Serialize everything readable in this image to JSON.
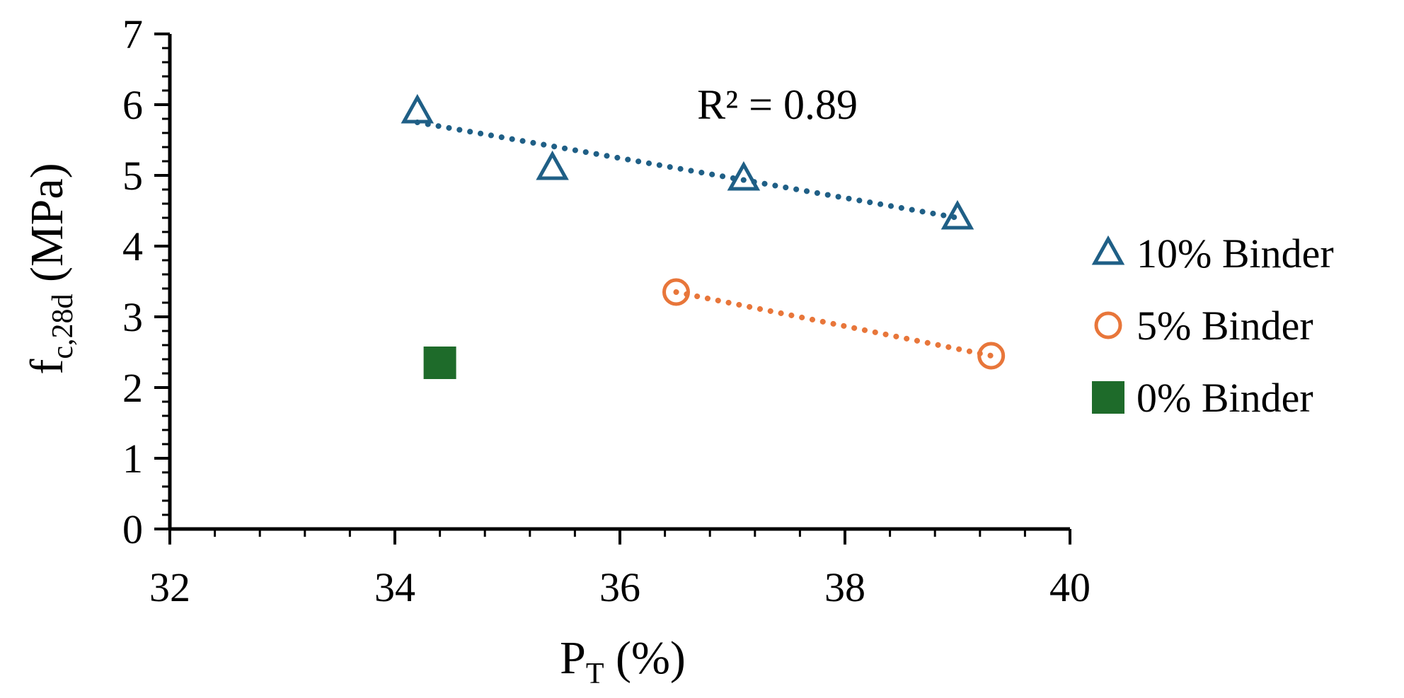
{
  "chart_data": {
    "type": "scatter",
    "title": "",
    "xlabel": {
      "main": "P",
      "sub": "T",
      "suffix": " (%)"
    },
    "ylabel": {
      "main": "f",
      "sub": "c,28d",
      "suffix": " (MPa)"
    },
    "xlim": [
      32,
      40
    ],
    "ylim": [
      0,
      7
    ],
    "x_ticks": [
      "32",
      "34",
      "36",
      "38",
      "40"
    ],
    "y_ticks": [
      "0",
      "1",
      "2",
      "3",
      "4",
      "5",
      "6",
      "7"
    ],
    "grid": false,
    "legend_position": "right",
    "series": [
      {
        "name": "10% Binder",
        "marker": "triangle-open",
        "color": "#1f5f86",
        "points": [
          {
            "x": 34.2,
            "y": 5.9
          },
          {
            "x": 35.4,
            "y": 5.1
          },
          {
            "x": 37.1,
            "y": 4.95
          },
          {
            "x": 39.0,
            "y": 4.4
          }
        ],
        "trendline": {
          "x": [
            34.2,
            39.0
          ],
          "y": [
            5.75,
            4.4
          ],
          "style": "dotted"
        }
      },
      {
        "name": "5% Binder",
        "marker": "circle-open",
        "color": "#e8763a",
        "points": [
          {
            "x": 36.5,
            "y": 3.35
          },
          {
            "x": 39.3,
            "y": 2.45
          }
        ],
        "trendline": {
          "x": [
            36.5,
            39.3
          ],
          "y": [
            3.35,
            2.45
          ],
          "style": "dotted"
        }
      },
      {
        "name": "0% Binder",
        "marker": "square-filled",
        "color": "#1e6b2a",
        "points": [
          {
            "x": 34.4,
            "y": 2.35
          }
        ]
      }
    ],
    "annotations": [
      {
        "text": "R² = 0.89",
        "x": 37.4,
        "y": 5.8
      }
    ]
  }
}
